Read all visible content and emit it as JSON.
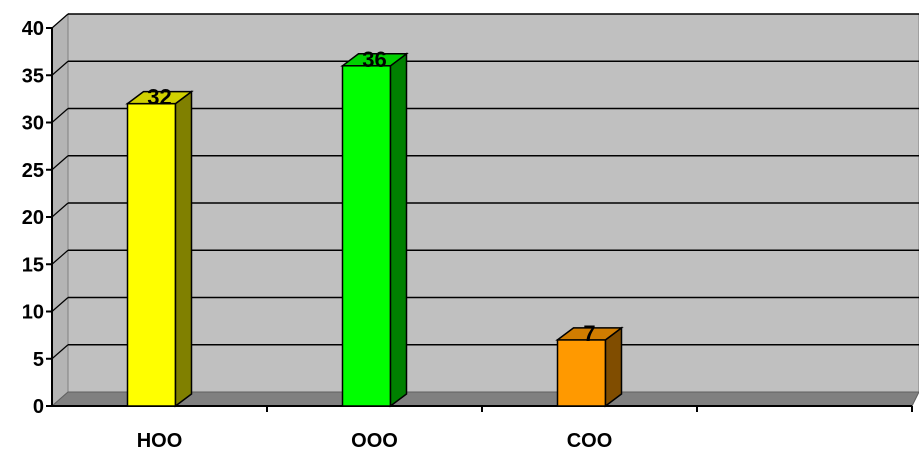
{
  "chart_data": {
    "type": "bar",
    "categories": [
      "HOO",
      "OOO",
      "COO",
      ""
    ],
    "values": [
      32,
      36,
      7,
      null
    ],
    "data_labels": [
      "32",
      "36",
      "7",
      ""
    ],
    "bar_colors": [
      "#FFFF00",
      "#00FF00",
      "#FF9900"
    ],
    "ylim": [
      0,
      40
    ],
    "yticks": [
      "0",
      "5",
      "10",
      "15",
      "20",
      "25",
      "30",
      "35",
      "40"
    ],
    "grid": true,
    "legend": "none",
    "plot_background": "#C0C0C0",
    "floor_color": "#808080"
  }
}
